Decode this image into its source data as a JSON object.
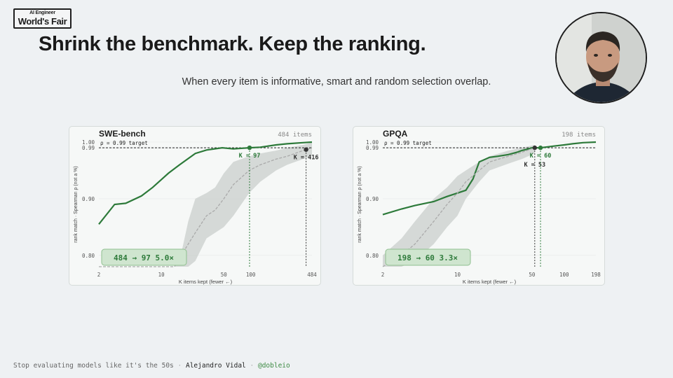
{
  "brand": {
    "top": "AI Engineer",
    "main": "World's Fair"
  },
  "headline": "Shrink the benchmark. Keep the ranking.",
  "subtitle": "When every item is informative, smart and random selection overlap.",
  "footer": {
    "talk": "Stop evaluating models like it's the 50s",
    "speaker": "Alejandro Vidal",
    "handle": "@dobleio",
    "separator": "·"
  },
  "colors": {
    "smart_line": "#2d7a3a",
    "random_line": "#aaaaaa",
    "band": "#c9cfcc",
    "badge_bg": "#cfe5cf",
    "background": "#eef1f3"
  },
  "chart_data": [
    {
      "type": "line",
      "title": "SWE-bench",
      "total_label": "484 items",
      "xlabel": "K items kept (fewer ←)",
      "ylabel": "rank match · Spearman ρ (not a %)",
      "x_scale": "log",
      "xlim": [
        2,
        484
      ],
      "ylim": [
        0.78,
        1.0
      ],
      "x_ticks": [
        2,
        10,
        50,
        100,
        484
      ],
      "y_ticks": [
        0.8,
        0.9,
        0.99,
        1.0
      ],
      "y_tick_labels": [
        "0.80",
        "0.90",
        "0.99",
        "1.00"
      ],
      "target": {
        "value": 0.99,
        "label": "ρ = 0.99 target"
      },
      "series": [
        {
          "role": "smart",
          "x": [
            2,
            3,
            4,
            6,
            8,
            12,
            16,
            24,
            32,
            48,
            64,
            96,
            128,
            192,
            256,
            384,
            484
          ],
          "y": [
            0.855,
            0.89,
            0.892,
            0.905,
            0.92,
            0.945,
            0.96,
            0.98,
            0.986,
            0.99,
            0.988,
            0.99,
            0.991,
            0.995,
            0.997,
            0.999,
            1.0
          ]
        },
        {
          "role": "random",
          "x": [
            2,
            3,
            5,
            10,
            14,
            20,
            24,
            32,
            40,
            50,
            64,
            96,
            128,
            192,
            256,
            384,
            484
          ],
          "y": [
            0.78,
            0.78,
            0.78,
            0.78,
            0.78,
            0.82,
            0.84,
            0.87,
            0.88,
            0.9,
            0.925,
            0.95,
            0.96,
            0.97,
            0.975,
            0.985,
            0.99
          ]
        }
      ],
      "band": {
        "x": [
          10,
          14,
          16,
          20,
          24,
          32,
          40,
          50,
          64,
          96,
          128,
          192,
          256,
          384,
          484
        ],
        "upper": [
          0.78,
          0.78,
          0.79,
          0.86,
          0.9,
          0.91,
          0.92,
          0.945,
          0.965,
          0.975,
          0.98,
          0.985,
          0.99,
          0.995,
          0.999
        ],
        "lower": [
          0.78,
          0.78,
          0.78,
          0.78,
          0.79,
          0.83,
          0.84,
          0.85,
          0.87,
          0.91,
          0.93,
          0.95,
          0.96,
          0.97,
          0.975
        ]
      },
      "markers": [
        {
          "series": "smart",
          "x": 97,
          "label": "K = 97"
        },
        {
          "series": "random",
          "x": 416,
          "label": "K = 416"
        }
      ],
      "badge": {
        "text": "484 → 97",
        "ratio": "5.0×"
      }
    },
    {
      "type": "line",
      "title": "GPQA",
      "total_label": "198 items",
      "xlabel": "K items kept (fewer ←)",
      "ylabel": "rank match · Spearman ρ (not a %)",
      "x_scale": "log",
      "xlim": [
        2,
        198
      ],
      "ylim": [
        0.78,
        1.0
      ],
      "x_ticks": [
        2,
        10,
        50,
        100,
        198
      ],
      "y_ticks": [
        0.8,
        0.9,
        0.99,
        1.0
      ],
      "y_tick_labels": [
        "0.80",
        "0.90",
        "0.99",
        "1.00"
      ],
      "target": {
        "value": 0.99,
        "label": "ρ = 0.99 target"
      },
      "series": [
        {
          "role": "smart",
          "x": [
            2,
            3,
            4,
            6,
            8,
            10,
            12,
            14,
            16,
            20,
            24,
            30,
            36,
            40,
            44,
            50,
            53,
            60,
            80,
            100,
            120,
            150,
            198
          ],
          "y": [
            0.872,
            0.882,
            0.888,
            0.895,
            0.904,
            0.91,
            0.915,
            0.935,
            0.965,
            0.973,
            0.975,
            0.978,
            0.982,
            0.985,
            0.987,
            0.99,
            0.99,
            0.99,
            0.993,
            0.995,
            0.997,
            0.999,
            1.0
          ]
        },
        {
          "role": "random",
          "x": [
            2,
            3,
            4,
            6,
            8,
            10,
            12,
            16,
            20,
            30,
            40,
            53
          ],
          "y": [
            0.78,
            0.8,
            0.82,
            0.86,
            0.89,
            0.91,
            0.93,
            0.95,
            0.965,
            0.975,
            0.982,
            0.99
          ]
        }
      ],
      "band": {
        "x": [
          2,
          3,
          4,
          6,
          8,
          10,
          12,
          16,
          20,
          30,
          40,
          53
        ],
        "upper": [
          0.8,
          0.83,
          0.86,
          0.9,
          0.92,
          0.94,
          0.95,
          0.965,
          0.975,
          0.985,
          0.99,
          0.995
        ],
        "lower": [
          0.78,
          0.78,
          0.79,
          0.82,
          0.85,
          0.87,
          0.9,
          0.93,
          0.95,
          0.962,
          0.97,
          0.98
        ]
      },
      "markers": [
        {
          "series": "random",
          "x": 53,
          "label": "K = 53"
        },
        {
          "series": "smart",
          "x": 60,
          "label": "K = 60"
        }
      ],
      "badge": {
        "text": "198 → 60",
        "ratio": "3.3×"
      }
    }
  ]
}
